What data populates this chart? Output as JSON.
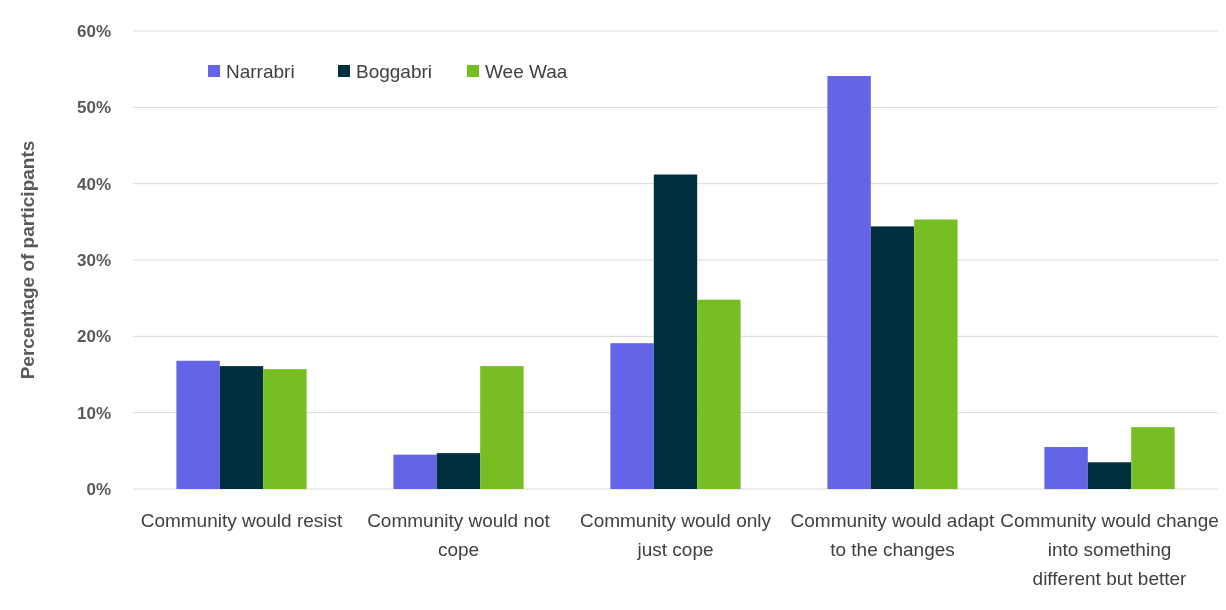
{
  "chart_data": {
    "type": "bar",
    "ylabel": "Percentage of participants",
    "categories": [
      "Community would resist",
      "Community would not cope",
      "Community would only just cope",
      "Community would adapt to the changes",
      "Community would change into something different but better"
    ],
    "series": [
      {
        "name": "Narrabri",
        "color": "#6464e6",
        "values": [
          16.8,
          4.5,
          19.1,
          54.1,
          5.5
        ]
      },
      {
        "name": "Boggabri",
        "color": "#00303d",
        "values": [
          16.1,
          4.7,
          41.2,
          34.4,
          3.5
        ]
      },
      {
        "name": "Wee Waa",
        "color": "#77be22",
        "values": [
          15.7,
          16.1,
          24.8,
          35.3,
          8.1
        ]
      }
    ],
    "ylim": [
      0,
      60
    ],
    "yticks": [
      {
        "value": 0,
        "label": "0%"
      },
      {
        "value": 10,
        "label": "10%"
      },
      {
        "value": 20,
        "label": "20%"
      },
      {
        "value": 30,
        "label": "30%"
      },
      {
        "value": 40,
        "label": "40%"
      },
      {
        "value": 50,
        "label": "50%"
      },
      {
        "value": 60,
        "label": "60%"
      }
    ],
    "grid": "y",
    "legend": "top left"
  }
}
